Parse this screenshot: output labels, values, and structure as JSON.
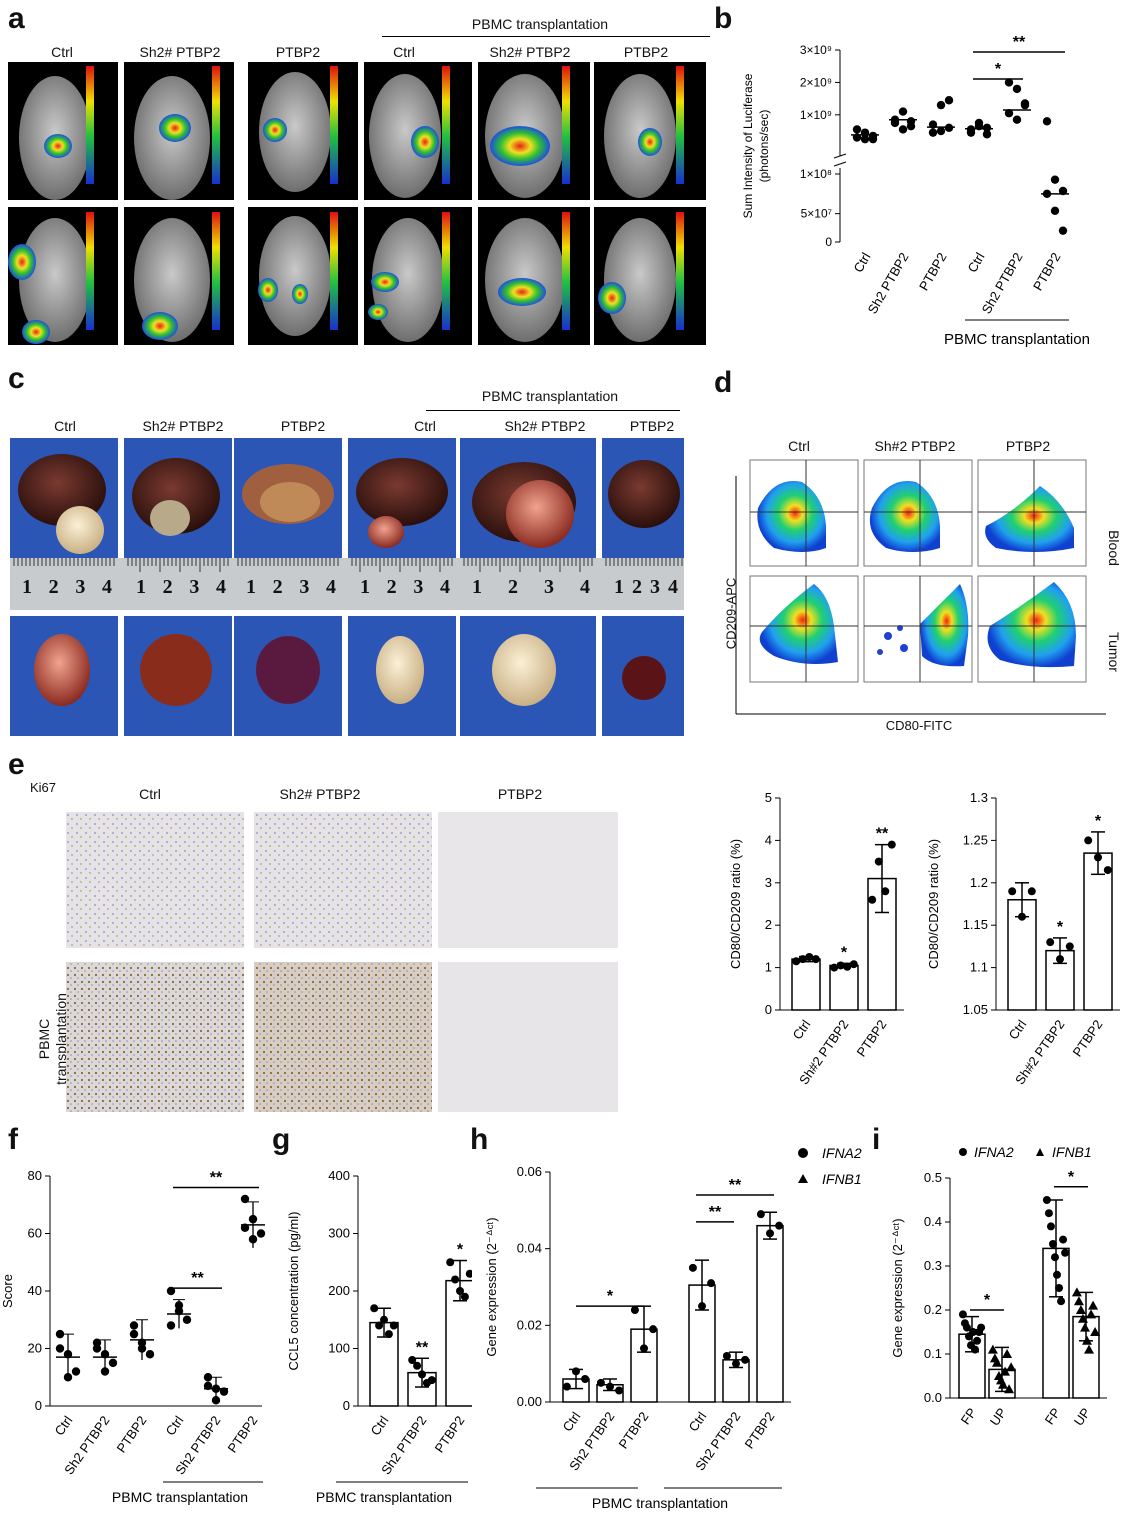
{
  "panels": {
    "a": "a",
    "b": "b",
    "c": "c",
    "d": "d",
    "e": "e",
    "f": "f",
    "g": "g",
    "h": "h",
    "i": "i"
  },
  "group_label": "PBMC transplantation",
  "a_cols": [
    "Ctrl",
    "Sh2# PTBP2",
    "PTBP2",
    "Ctrl",
    "Sh2# PTBP2",
    "PTBP2"
  ],
  "c_cols": [
    "Ctrl",
    "Sh2# PTBP2",
    "PTBP2",
    "Ctrl",
    "Sh2# PTBP2",
    "PTBP2"
  ],
  "d_cols": [
    "Ctrl",
    "Sh#2 PTBP2",
    "PTBP2"
  ],
  "d_rows": [
    "Blood",
    "Tumor"
  ],
  "d_xlabel": "CD80-FITC",
  "d_ylabel": "CD209-APC",
  "e_marker": "Ki67",
  "e_cols": [
    "Ctrl",
    "Sh2# PTBP2",
    "PTBP2"
  ],
  "e_rowlabel": "PBMC transplantation",
  "ruler_numbers": [
    "1",
    "2",
    "3",
    "4"
  ],
  "chart_data": [
    {
      "id": "b",
      "type": "scatter",
      "ylabel": "Sum Intensity of Luciferase (photons/sec)",
      "categories": [
        "Ctrl",
        "Sh2 PTBP2",
        "PTBP2",
        "Ctrl",
        "Sh2 PTBP2",
        "PTBP2"
      ],
      "yticks": [
        "0",
        "5×10⁷",
        "1×10⁸",
        "1×10⁹",
        "2×10⁹",
        "3×10⁹"
      ],
      "values": [
        [
          300000000.0,
          450000000.0,
          250000000.0,
          550000000.0,
          250000000.0,
          350000000.0
        ],
        [
          850000000.0,
          1100000000.0,
          650000000.0,
          750000000.0,
          550000000.0,
          800000000.0
        ],
        [
          450000000.0,
          1300000000.0,
          1450000000.0,
          700000000.0,
          500000000.0,
          600000000.0
        ],
        [
          550000000.0,
          750000000.0,
          400000000.0,
          450000000.0,
          650000000.0,
          600000000.0
        ],
        [
          2000000000.0,
          1800000000.0,
          1300000000.0,
          1050000000.0,
          850000000.0,
          1350000000.0
        ],
        [
          800000000.0,
          110000000.0,
          90000000.0,
          85000000.0,
          55000000.0,
          20000000.0
        ]
      ],
      "means": [
        380000000.0,
        850000000.0,
        620000000.0,
        570000000.0,
        1150000000.0,
        85000000.0
      ],
      "significance": [
        {
          "from": 3,
          "to": 4,
          "label": "*"
        },
        {
          "from": 3,
          "to": 5,
          "label": "**"
        }
      ],
      "group_label": "PBMC transplantation",
      "ylim": [
        0,
        3000000000.0
      ]
    },
    {
      "id": "e1",
      "type": "bar",
      "ylabel": "CD80/CD209 ratio (%)",
      "categories": [
        "Ctrl",
        "Sh#2 PTBP2",
        "PTBP2"
      ],
      "values": [
        1.2,
        1.05,
        3.1
      ],
      "errors": [
        0.06,
        0.05,
        0.8
      ],
      "points": [
        [
          1.15,
          1.2,
          1.25,
          1.2
        ],
        [
          1.0,
          1.05,
          1.02,
          1.08
        ],
        [
          2.6,
          3.5,
          2.8,
          3.9
        ]
      ],
      "stars": [
        "",
        "*",
        "**"
      ],
      "ylim": [
        0,
        5
      ],
      "yticks": [
        0,
        1,
        2,
        3,
        4,
        5
      ]
    },
    {
      "id": "e2",
      "type": "bar",
      "ylabel": "CD80/CD209 ratio (%)",
      "categories": [
        "Ctrl",
        "Sh#2 PTBP2",
        "PTBP2"
      ],
      "values": [
        1.18,
        1.12,
        1.235
      ],
      "errors": [
        0.02,
        0.015,
        0.025
      ],
      "points": [
        [
          1.19,
          1.16,
          1.19
        ],
        [
          1.13,
          1.11,
          1.125
        ],
        [
          1.25,
          1.23,
          1.215
        ]
      ],
      "stars": [
        "",
        "*",
        "*"
      ],
      "ylim": [
        1.05,
        1.3
      ],
      "yticks": [
        1.05,
        1.1,
        1.15,
        1.2,
        1.25,
        1.3
      ]
    },
    {
      "id": "f",
      "type": "scatter",
      "ylabel": "Score",
      "categories": [
        "Ctrl",
        "Sh2 PTBP2",
        "PTBP2",
        "Ctrl",
        "Sh2 PTBP2",
        "PTBP2"
      ],
      "values": [
        [
          25,
          18,
          12,
          20,
          10
        ],
        [
          22,
          18,
          15,
          20,
          12
        ],
        [
          28,
          22,
          18,
          25,
          20
        ],
        [
          40,
          33,
          30,
          28,
          35
        ],
        [
          10,
          6,
          5,
          7,
          2
        ],
        [
          72,
          65,
          60,
          62,
          58
        ]
      ],
      "means": [
        17,
        17,
        23,
        32,
        6,
        63
      ],
      "errors": [
        8,
        6,
        7,
        5,
        4,
        8
      ],
      "significance": [
        {
          "from": 3,
          "to": 4,
          "label": "**"
        },
        {
          "from": 3,
          "to": 5,
          "label": "**"
        }
      ],
      "group_label": "PBMC transplantation",
      "ylim": [
        0,
        80
      ],
      "yticks": [
        0,
        20,
        40,
        60,
        80
      ]
    },
    {
      "id": "g",
      "type": "bar",
      "ylabel": "CCL5 concentration (pg/ml)",
      "categories": [
        "Ctrl",
        "Sh2 PTBP2",
        "PTBP2"
      ],
      "values": [
        145,
        58,
        218
      ],
      "errors": [
        25,
        25,
        35
      ],
      "points": [
        [
          170,
          140,
          150,
          125,
          140
        ],
        [
          80,
          70,
          55,
          40,
          45
        ],
        [
          250,
          220,
          200,
          190,
          230
        ]
      ],
      "stars": [
        "",
        "**",
        "*"
      ],
      "group_label": "PBMC transplantation",
      "ylim": [
        0,
        400
      ],
      "yticks": [
        0,
        100,
        200,
        300,
        400
      ]
    },
    {
      "id": "h",
      "type": "bar",
      "ylabel": "Gene expression (2⁻ᐞᶜᵗ)",
      "categories": [
        "Ctrl",
        "Sh2 PTBP2",
        "PTBP2",
        "Ctrl",
        "Sh2 PTBP2",
        "PTBP2"
      ],
      "legend": [
        "IFNA2",
        "IFNB1"
      ],
      "values": [
        0.006,
        0.0045,
        0.019,
        0.0305,
        0.011,
        0.046
      ],
      "errors": [
        0.0025,
        0.0015,
        0.006,
        0.0065,
        0.002,
        0.0035
      ],
      "points": [
        [
          0.004,
          0.008,
          0.006
        ],
        [
          0.005,
          0.004,
          0.003
        ],
        [
          0.024,
          0.014,
          0.019
        ],
        [
          0.035,
          0.025,
          0.031
        ],
        [
          0.012,
          0.01,
          0.011
        ],
        [
          0.049,
          0.044,
          0.046
        ]
      ],
      "significance": [
        {
          "from": 0,
          "to": 2,
          "label": "*"
        },
        {
          "from": 3,
          "to": 4,
          "label": "**"
        },
        {
          "from": 3,
          "to": 5,
          "label": "**"
        }
      ],
      "group_label": "PBMC transplantation",
      "ylim": [
        0,
        0.06
      ],
      "yticks": [
        "0.00",
        "0.02",
        "0.04",
        "0.06"
      ]
    },
    {
      "id": "i",
      "type": "bar",
      "ylabel": "Gene expression (2⁻ᐞᶜᵗ)",
      "categories": [
        "FP",
        "UP",
        "FP",
        "UP"
      ],
      "legend": [
        "IFNA2",
        "IFNB1"
      ],
      "values": [
        0.145,
        0.065,
        0.34,
        0.185
      ],
      "errors": [
        0.04,
        0.05,
        0.11,
        0.055
      ],
      "points": [
        [
          0.19,
          0.17,
          0.16,
          0.14,
          0.12,
          0.15,
          0.11,
          0.13,
          0.15,
          0.16
        ],
        [
          0.11,
          0.09,
          0.08,
          0.05,
          0.04,
          0.03,
          0.06,
          0.1,
          0.02,
          0.07
        ],
        [
          0.45,
          0.42,
          0.39,
          0.35,
          0.32,
          0.28,
          0.25,
          0.22,
          0.36,
          0.33
        ],
        [
          0.24,
          0.22,
          0.2,
          0.18,
          0.16,
          0.13,
          0.11,
          0.19,
          0.21,
          0.15
        ]
      ],
      "significance": [
        {
          "from": 0,
          "to": 1,
          "label": "*"
        },
        {
          "from": 2,
          "to": 3,
          "label": "*"
        }
      ],
      "ylim": [
        0,
        0.5
      ],
      "yticks": [
        "0.0",
        "0.1",
        "0.2",
        "0.3",
        "0.4",
        "0.5"
      ]
    }
  ]
}
